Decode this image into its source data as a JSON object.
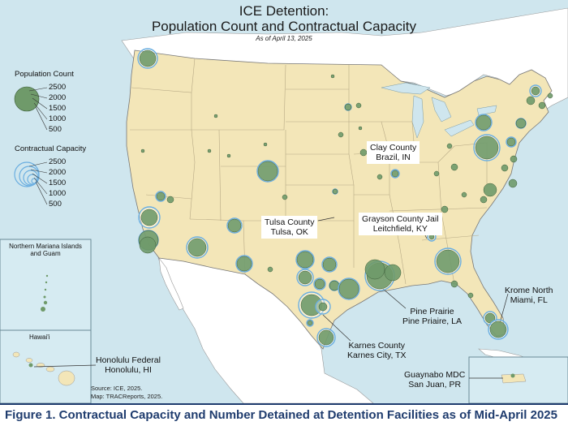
{
  "title": "ICE Detention:",
  "subtitle": "Population Count and Contractual Capacity",
  "date_note": "As of April 13, 2025",
  "legend": {
    "population": {
      "title": "Population Count",
      "values": [
        "2500",
        "2000",
        "1500",
        "1000",
        "500"
      ]
    },
    "capacity": {
      "title": "Contractual Capacity",
      "values": [
        "2500",
        "2000",
        "1500",
        "1000",
        "500"
      ]
    }
  },
  "insets": {
    "mariana": "Northern Mariana Islands and Guam",
    "hawaii": "Hawai'i"
  },
  "labels": {
    "clay_name": "Clay County",
    "clay_loc": "Brazil, IN",
    "tulsa_name": "Tulsa County",
    "tulsa_loc": "Tulsa, OK",
    "grayson_name": "Grayson County Jail",
    "grayson_loc": "Leitchfield, KY",
    "krome_name": "Krome North",
    "krome_loc": "Miami, FL",
    "pine_name": "Pine Prairie",
    "pine_loc": "Pine Priaire, LA",
    "karnes_name": "Karnes County",
    "karnes_loc": "Karnes City, TX",
    "honolulu_name": "Honolulu Federal",
    "honolulu_loc": "Honolulu, HI",
    "guaynabo_name": "Guaynabo MDC",
    "guaynabo_loc": "San Juan, PR"
  },
  "source_line1": "Source: ICE, 2025.",
  "source_line2": "Map: TRACReports, 2025.",
  "caption": "Figure 1. Contractual Capacity and Number Detained at Detention Facilities as of Mid-April 2025",
  "colors": {
    "ocean": "#cfe6ee",
    "land_us": "#f3e6b8",
    "land_foreign": "#ffffff",
    "population_fill": "#6f9a6a",
    "capacity_ring": "#6aaee0",
    "caption_text": "#1f3c6e"
  }
}
